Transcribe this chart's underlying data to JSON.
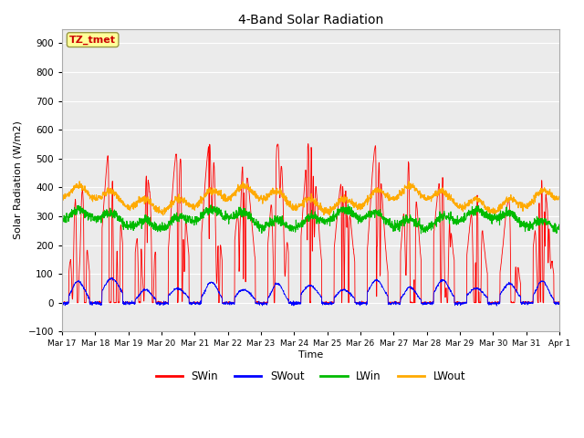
{
  "title": "4-Band Solar Radiation",
  "xlabel": "Time",
  "ylabel": "Solar Radiation (W/m2)",
  "ylim": [
    -100,
    950
  ],
  "yticks": [
    -100,
    0,
    100,
    200,
    300,
    400,
    500,
    600,
    700,
    800,
    900
  ],
  "legend_labels": [
    "SWin",
    "SWout",
    "LWin",
    "LWout"
  ],
  "legend_colors": [
    "#ff0000",
    "#0000ff",
    "#00bb00",
    "#ffaa00"
  ],
  "annotation_text": "TZ_tmet",
  "annotation_color": "#cc0000",
  "annotation_bg": "#ffff99",
  "fig_bg": "#ffffff",
  "plot_bg": "#ebebeb",
  "n_days": 15,
  "n_points_per_day": 144
}
